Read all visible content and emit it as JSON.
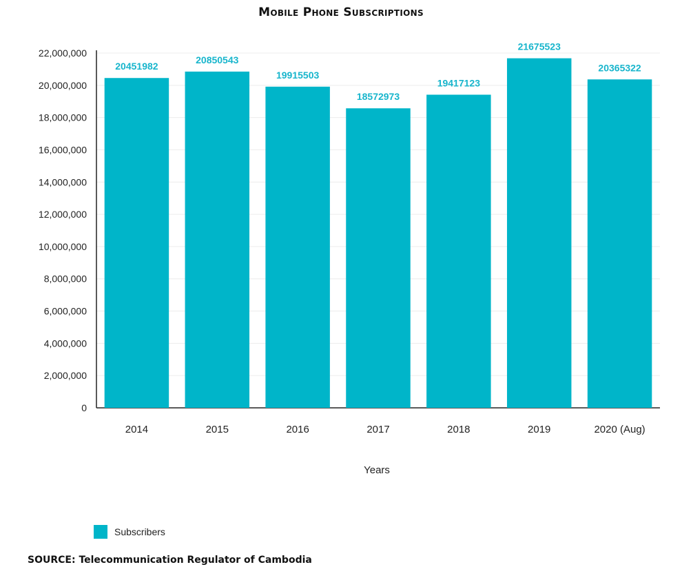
{
  "chart_data": {
    "type": "bar",
    "title": "Mobile Phone Subscriptions",
    "xlabel": "Years",
    "ylabel": "",
    "categories": [
      "2014",
      "2015",
      "2016",
      "2017",
      "2018",
      "2019",
      "2020 (Aug)"
    ],
    "series": [
      {
        "name": "Subscribers",
        "values": [
          20451982,
          20850543,
          19915503,
          18572973,
          19417123,
          21675523,
          20365322
        ],
        "color": "#00b5c9"
      }
    ],
    "data_labels": [
      "20451982",
      "20850543",
      "19915503",
      "18572973",
      "19417123",
      "21675523",
      "20365322"
    ],
    "ylim": [
      0,
      22000000
    ],
    "yticks": [
      0,
      2000000,
      4000000,
      6000000,
      8000000,
      10000000,
      12000000,
      14000000,
      16000000,
      18000000,
      20000000,
      22000000
    ],
    "ytick_labels": [
      "0",
      "2,000,000",
      "4,000,000",
      "6,000,000",
      "8,000,000",
      "10,000,000",
      "12,000,000",
      "14,000,000",
      "16,000,000",
      "18,000,000",
      "20,000,000",
      "22,000,000"
    ],
    "grid": true,
    "legend": "bottom-left",
    "label_color": "#17b5cc"
  },
  "source": "SOURCE: Telecommunication Regulator of Cambodia"
}
